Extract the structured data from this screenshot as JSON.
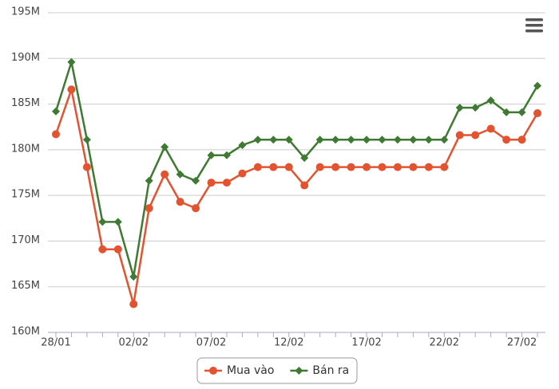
{
  "chart_data": {
    "type": "line",
    "categories": [
      "28/01",
      null,
      null,
      null,
      null,
      "02/02",
      null,
      null,
      null,
      null,
      "07/02",
      null,
      null,
      null,
      null,
      "12/02",
      null,
      null,
      null,
      null,
      "17/02",
      null,
      null,
      null,
      null,
      "22/02",
      null,
      null,
      null,
      null,
      "27/02",
      null
    ],
    "series": [
      {
        "name": "Mua vào",
        "color": "#e4532f",
        "marker": "circle",
        "values": [
          181700000,
          186600000,
          178100000,
          169100000,
          169100000,
          163100000,
          173600000,
          177300000,
          174300000,
          173600000,
          176400000,
          176400000,
          177400000,
          178100000,
          178100000,
          178100000,
          176100000,
          178100000,
          178100000,
          178100000,
          178100000,
          178100000,
          178100000,
          178100000,
          178100000,
          178100000,
          181600000,
          181600000,
          182300000,
          181100000,
          181100000,
          184000000
        ]
      },
      {
        "name": "Bán ra",
        "color": "#3e7a32",
        "marker": "diamond",
        "values": [
          184200000,
          189600000,
          181100000,
          172100000,
          172100000,
          166100000,
          176600000,
          180300000,
          177300000,
          176600000,
          179400000,
          179400000,
          180500000,
          181100000,
          181100000,
          181100000,
          179100000,
          181100000,
          181100000,
          181100000,
          181100000,
          181100000,
          181100000,
          181100000,
          181100000,
          181100000,
          184600000,
          184600000,
          185400000,
          184100000,
          184100000,
          187000000
        ]
      }
    ],
    "ylim": [
      160000000,
      195000000
    ],
    "yticks": [
      {
        "value": 160000000,
        "label": "160M"
      },
      {
        "value": 165000000,
        "label": "165M"
      },
      {
        "value": 170000000,
        "label": "170M"
      },
      {
        "value": 175000000,
        "label": "175M"
      },
      {
        "value": 180000000,
        "label": "180M"
      },
      {
        "value": 185000000,
        "label": "185M"
      },
      {
        "value": 190000000,
        "label": "190M"
      },
      {
        "value": 195000000,
        "label": "195M"
      }
    ],
    "grid": true
  }
}
